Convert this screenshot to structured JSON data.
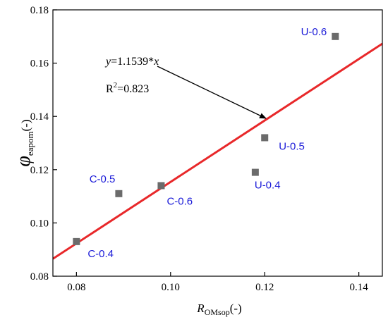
{
  "chart_data": {
    "type": "scatter",
    "xlabel": {
      "main": "R",
      "sub": "OMsop",
      "unit": "(-)"
    },
    "ylabel": {
      "main": "φ",
      "sub": "eapom",
      "unit": "(-)"
    },
    "xlim": [
      0.075,
      0.145
    ],
    "ylim": [
      0.08,
      0.18
    ],
    "xticks": [
      "0.08",
      "0.10",
      "0.12",
      "0.14"
    ],
    "yticks": [
      "0.08",
      "0.10",
      "0.12",
      "0.14",
      "0.16",
      "0.18"
    ],
    "xtick_values": [
      0.08,
      0.1,
      0.12,
      0.14
    ],
    "ytick_values": [
      0.08,
      0.1,
      0.12,
      0.14,
      0.16,
      0.18
    ],
    "points": [
      {
        "label": "C-0.4",
        "x": 0.08,
        "y": 0.093
      },
      {
        "label": "C-0.5",
        "x": 0.089,
        "y": 0.111
      },
      {
        "label": "C-0.6",
        "x": 0.098,
        "y": 0.114
      },
      {
        "label": "U-0.4",
        "x": 0.118,
        "y": 0.119
      },
      {
        "label": "U-0.5",
        "x": 0.12,
        "y": 0.132
      },
      {
        "label": "U-0.6",
        "x": 0.135,
        "y": 0.17
      }
    ],
    "fit": {
      "slope": 1.1539,
      "equation_lhs": "y",
      "equation_rhs": "=1.1539*",
      "equation_var": "x",
      "r2_label": "R",
      "r2_sup": "2",
      "r2_value": "=0.823"
    },
    "colors": {
      "fit_line": "#e8282a",
      "marker": "#6b6b6b",
      "point_label": "#1a1ad8"
    }
  }
}
